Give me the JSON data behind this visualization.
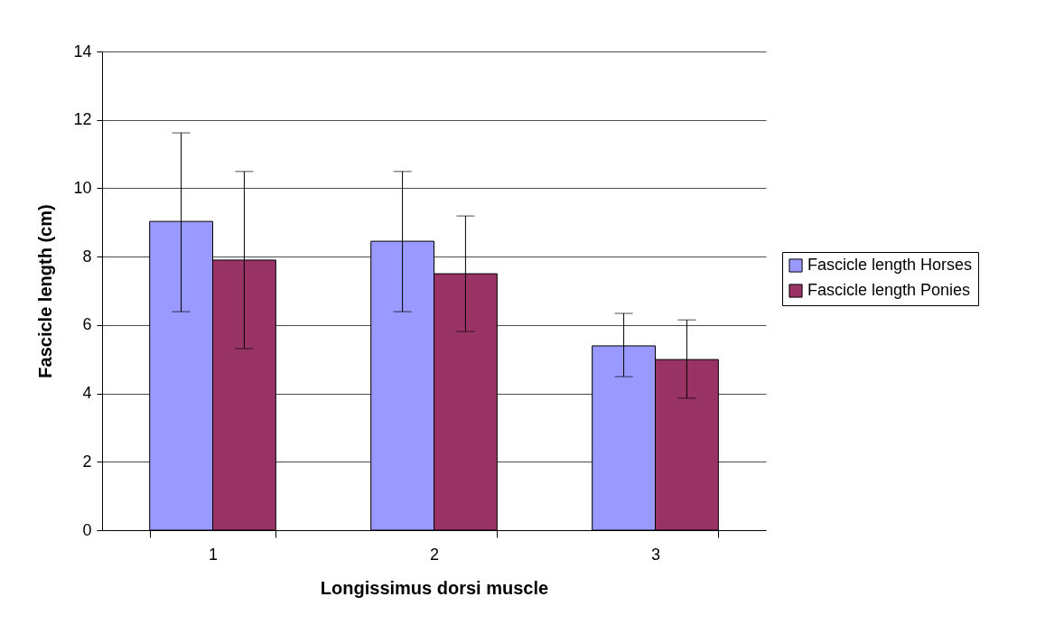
{
  "chart_data": {
    "type": "bar",
    "xlabel": "Longissimus dorsi muscle",
    "ylabel": "Fascicle length (cm)",
    "categories": [
      "1",
      "2",
      "3"
    ],
    "series": [
      {
        "name": "Fascicle length Horses",
        "color": "#9999ff",
        "values": [
          9.03,
          8.45,
          5.39
        ],
        "errors": [
          [
            6.39,
            11.62
          ],
          [
            6.39,
            10.49
          ],
          [
            4.49,
            6.34
          ]
        ]
      },
      {
        "name": "Fascicle length Ponies",
        "color": "#993366",
        "values": [
          7.9,
          7.5,
          4.99
        ],
        "errors": [
          [
            5.31,
            10.49
          ],
          [
            5.81,
            9.19
          ],
          [
            3.86,
            6.15
          ]
        ]
      }
    ],
    "ylim": [
      0,
      14
    ],
    "yticks": [
      0,
      2,
      4,
      6,
      8,
      10,
      12,
      14
    ],
    "grid": "y",
    "legend": "right"
  }
}
